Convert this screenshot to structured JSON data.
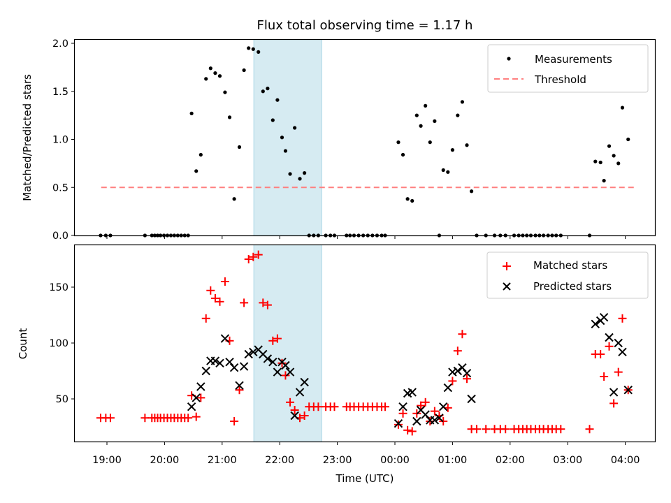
{
  "chart_data": [
    {
      "type": "scatter",
      "title": "Flux total observing time = 1.17 h",
      "xlabel": "",
      "ylabel": "Matched/Predicted stars",
      "ylim": [
        0,
        2.0
      ],
      "yticks": [
        "0.0",
        "0.5",
        "1.0",
        "1.5",
        "2.0"
      ],
      "ytick_values": [
        0,
        0.5,
        1.0,
        1.5,
        2.0
      ],
      "xlim_hours_since_1900": [
        -0.56,
        9.55
      ],
      "xtick_values": [
        0,
        1,
        2,
        3,
        4,
        5,
        6,
        7,
        8,
        9
      ],
      "grid": false,
      "legend": {
        "placement": "top-right",
        "entries": [
          "Measurements",
          "Threshold"
        ]
      },
      "shaded_span_hours": [
        2.55,
        3.73
      ],
      "threshold": {
        "value": 0.5,
        "x_range_hours": [
          -0.1,
          9.15
        ],
        "color": "#ff7f7f"
      },
      "series": [
        {
          "name": "Measurements",
          "color": "#000000",
          "points": [
            [
              -0.11,
              0
            ],
            [
              -0.02,
              0
            ],
            [
              0.06,
              0
            ],
            [
              0.66,
              0
            ],
            [
              0.78,
              0
            ],
            [
              0.83,
              0
            ],
            [
              0.88,
              0
            ],
            [
              0.93,
              0
            ],
            [
              0.99,
              0
            ],
            [
              1.05,
              0
            ],
            [
              1.11,
              0
            ],
            [
              1.17,
              0
            ],
            [
              1.23,
              0
            ],
            [
              1.29,
              0
            ],
            [
              1.35,
              0
            ],
            [
              1.41,
              0
            ],
            [
              1.47,
              1.27
            ],
            [
              1.55,
              0.67
            ],
            [
              1.63,
              0.84
            ],
            [
              1.72,
              1.63
            ],
            [
              1.8,
              1.74
            ],
            [
              1.88,
              1.69
            ],
            [
              1.96,
              1.66
            ],
            [
              2.05,
              1.49
            ],
            [
              2.13,
              1.23
            ],
            [
              2.21,
              0.38
            ],
            [
              2.3,
              0.92
            ],
            [
              2.38,
              1.72
            ],
            [
              2.46,
              1.95
            ],
            [
              2.54,
              1.94
            ],
            [
              2.63,
              1.91
            ],
            [
              2.71,
              1.5
            ],
            [
              2.79,
              1.53
            ],
            [
              2.88,
              1.2
            ],
            [
              2.96,
              1.41
            ],
            [
              3.04,
              1.02
            ],
            [
              3.1,
              0.88
            ],
            [
              3.18,
              0.64
            ],
            [
              3.26,
              1.12
            ],
            [
              3.35,
              0.59
            ],
            [
              3.43,
              0.65
            ],
            [
              3.51,
              0
            ],
            [
              3.59,
              0
            ],
            [
              3.67,
              0
            ],
            [
              3.8,
              0
            ],
            [
              3.88,
              0
            ],
            [
              3.95,
              0
            ],
            [
              4.16,
              0
            ],
            [
              4.22,
              0
            ],
            [
              4.29,
              0
            ],
            [
              4.37,
              0
            ],
            [
              4.45,
              0
            ],
            [
              4.53,
              0
            ],
            [
              4.61,
              0
            ],
            [
              4.69,
              0
            ],
            [
              4.77,
              0
            ],
            [
              4.83,
              0
            ],
            [
              5.06,
              0.97
            ],
            [
              5.14,
              0.84
            ],
            [
              5.22,
              0.38
            ],
            [
              5.3,
              0.36
            ],
            [
              5.38,
              1.25
            ],
            [
              5.45,
              1.14
            ],
            [
              5.53,
              1.35
            ],
            [
              5.61,
              0.97
            ],
            [
              5.69,
              1.19
            ],
            [
              5.77,
              0
            ],
            [
              5.84,
              0.68
            ],
            [
              5.92,
              0.66
            ],
            [
              6.0,
              0.89
            ],
            [
              6.09,
              1.25
            ],
            [
              6.17,
              1.39
            ],
            [
              6.25,
              0.94
            ],
            [
              6.33,
              0.46
            ],
            [
              6.42,
              0
            ],
            [
              6.58,
              0
            ],
            [
              6.73,
              0
            ],
            [
              6.83,
              0
            ],
            [
              6.92,
              0
            ],
            [
              7.07,
              0
            ],
            [
              7.15,
              0
            ],
            [
              7.22,
              0
            ],
            [
              7.29,
              0
            ],
            [
              7.36,
              0
            ],
            [
              7.44,
              0
            ],
            [
              7.51,
              0
            ],
            [
              7.58,
              0
            ],
            [
              7.66,
              0
            ],
            [
              7.73,
              0
            ],
            [
              7.8,
              0
            ],
            [
              7.88,
              0
            ],
            [
              8.38,
              0
            ],
            [
              8.48,
              0.77
            ],
            [
              8.57,
              0.76
            ],
            [
              8.63,
              0.57
            ],
            [
              8.72,
              0.93
            ],
            [
              8.8,
              0.83
            ],
            [
              8.88,
              0.75
            ],
            [
              8.95,
              1.33
            ],
            [
              9.05,
              1.0
            ]
          ]
        }
      ]
    },
    {
      "type": "scatter",
      "title": "",
      "xlabel": "Time (UTC)",
      "ylabel": "Count",
      "ylim": [
        12,
        188
      ],
      "yticks": [
        "50",
        "100",
        "150"
      ],
      "ytick_values": [
        50,
        100,
        150
      ],
      "xlim_hours_since_1900": [
        -0.56,
        9.55
      ],
      "xticks": [
        "19:00",
        "20:00",
        "21:00",
        "22:00",
        "23:00",
        "00:00",
        "01:00",
        "02:00",
        "03:00",
        "04:00"
      ],
      "xtick_values": [
        0,
        1,
        2,
        3,
        4,
        5,
        6,
        7,
        8,
        9
      ],
      "grid": false,
      "legend": {
        "placement": "top-right",
        "entries": [
          "Matched stars",
          "Predicted stars"
        ]
      },
      "shaded_span_hours": [
        2.55,
        3.73
      ],
      "series": [
        {
          "name": "Matched stars",
          "marker": "+",
          "color": "#ff0000",
          "points": [
            [
              -0.11,
              33
            ],
            [
              -0.02,
              33
            ],
            [
              0.06,
              33
            ],
            [
              0.66,
              33
            ],
            [
              0.78,
              33
            ],
            [
              0.83,
              33
            ],
            [
              0.88,
              33
            ],
            [
              0.93,
              33
            ],
            [
              0.99,
              33
            ],
            [
              1.05,
              33
            ],
            [
              1.11,
              33
            ],
            [
              1.17,
              33
            ],
            [
              1.23,
              33
            ],
            [
              1.29,
              33
            ],
            [
              1.35,
              33
            ],
            [
              1.41,
              33
            ],
            [
              1.47,
              53
            ],
            [
              1.55,
              34
            ],
            [
              1.63,
              51
            ],
            [
              1.72,
              122
            ],
            [
              1.8,
              147
            ],
            [
              1.88,
              140
            ],
            [
              1.96,
              137
            ],
            [
              2.05,
              155
            ],
            [
              2.13,
              102
            ],
            [
              2.21,
              30
            ],
            [
              2.3,
              58
            ],
            [
              2.38,
              136
            ],
            [
              2.46,
              175
            ],
            [
              2.54,
              177
            ],
            [
              2.63,
              179
            ],
            [
              2.71,
              136
            ],
            [
              2.79,
              134
            ],
            [
              2.88,
              102
            ],
            [
              2.96,
              104
            ],
            [
              3.04,
              82
            ],
            [
              3.1,
              71
            ],
            [
              3.18,
              47
            ],
            [
              3.26,
              40
            ],
            [
              3.35,
              33
            ],
            [
              3.43,
              35
            ],
            [
              3.51,
              43
            ],
            [
              3.59,
              43
            ],
            [
              3.67,
              43
            ],
            [
              3.8,
              43
            ],
            [
              3.88,
              43
            ],
            [
              3.95,
              43
            ],
            [
              4.16,
              43
            ],
            [
              4.22,
              43
            ],
            [
              4.29,
              43
            ],
            [
              4.37,
              43
            ],
            [
              4.45,
              43
            ],
            [
              4.53,
              43
            ],
            [
              4.61,
              43
            ],
            [
              4.69,
              43
            ],
            [
              4.77,
              43
            ],
            [
              4.83,
              43
            ],
            [
              5.06,
              27
            ],
            [
              5.14,
              37
            ],
            [
              5.22,
              22
            ],
            [
              5.3,
              21
            ],
            [
              5.38,
              37
            ],
            [
              5.45,
              44
            ],
            [
              5.53,
              47
            ],
            [
              5.61,
              30
            ],
            [
              5.69,
              39
            ],
            [
              5.77,
              35
            ],
            [
              5.84,
              30
            ],
            [
              5.92,
              42
            ],
            [
              6.0,
              66
            ],
            [
              6.09,
              93
            ],
            [
              6.17,
              108
            ],
            [
              6.25,
              68
            ],
            [
              6.33,
              23
            ],
            [
              6.42,
              23
            ],
            [
              6.58,
              23
            ],
            [
              6.73,
              23
            ],
            [
              6.83,
              23
            ],
            [
              6.92,
              23
            ],
            [
              7.07,
              23
            ],
            [
              7.15,
              23
            ],
            [
              7.22,
              23
            ],
            [
              7.29,
              23
            ],
            [
              7.36,
              23
            ],
            [
              7.44,
              23
            ],
            [
              7.51,
              23
            ],
            [
              7.58,
              23
            ],
            [
              7.66,
              23
            ],
            [
              7.73,
              23
            ],
            [
              7.8,
              23
            ],
            [
              7.88,
              23
            ],
            [
              8.38,
              23
            ],
            [
              8.48,
              90
            ],
            [
              8.57,
              90
            ],
            [
              8.63,
              70
            ],
            [
              8.72,
              97
            ],
            [
              8.8,
              46
            ],
            [
              8.88,
              74
            ],
            [
              8.95,
              122
            ],
            [
              9.05,
              58
            ]
          ]
        },
        {
          "name": "Predicted stars",
          "marker": "x",
          "color": "#000000",
          "points": [
            [
              1.47,
              43
            ],
            [
              1.55,
              51
            ],
            [
              1.63,
              61
            ],
            [
              1.72,
              75
            ],
            [
              1.8,
              84
            ],
            [
              1.88,
              84
            ],
            [
              1.96,
              82
            ],
            [
              2.05,
              104
            ],
            [
              2.13,
              83
            ],
            [
              2.21,
              78
            ],
            [
              2.3,
              62
            ],
            [
              2.38,
              79
            ],
            [
              2.46,
              90
            ],
            [
              2.54,
              92
            ],
            [
              2.63,
              94
            ],
            [
              2.71,
              90
            ],
            [
              2.79,
              86
            ],
            [
              2.88,
              83
            ],
            [
              2.96,
              74
            ],
            [
              3.04,
              83
            ],
            [
              3.1,
              80
            ],
            [
              3.18,
              74
            ],
            [
              3.26,
              35
            ],
            [
              3.35,
              56
            ],
            [
              3.43,
              65
            ],
            [
              5.06,
              28
            ],
            [
              5.14,
              43
            ],
            [
              5.22,
              55
            ],
            [
              5.3,
              56
            ],
            [
              5.38,
              30
            ],
            [
              5.45,
              40
            ],
            [
              5.53,
              36
            ],
            [
              5.61,
              31
            ],
            [
              5.69,
              31
            ],
            [
              5.77,
              33
            ],
            [
              5.84,
              43
            ],
            [
              5.92,
              60
            ],
            [
              6.0,
              74
            ],
            [
              6.09,
              75
            ],
            [
              6.17,
              78
            ],
            [
              6.25,
              73
            ],
            [
              6.33,
              50
            ],
            [
              8.48,
              117
            ],
            [
              8.57,
              120
            ],
            [
              8.63,
              123
            ],
            [
              8.72,
              105
            ],
            [
              8.8,
              56
            ],
            [
              8.88,
              100
            ],
            [
              8.95,
              92
            ],
            [
              9.05,
              58
            ]
          ]
        }
      ]
    }
  ]
}
